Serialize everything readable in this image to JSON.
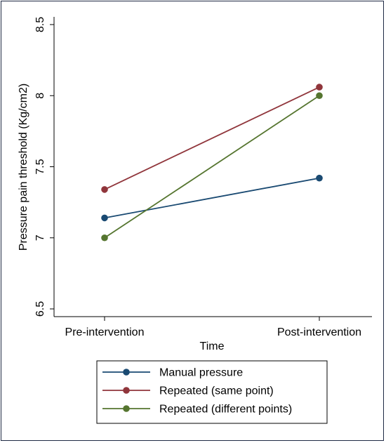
{
  "chart_data": {
    "type": "line",
    "xlabel": "Time",
    "ylabel": "Pressure pain threshold (Kg/cm2)",
    "categories": [
      "Pre-intervention",
      "Post-intervention"
    ],
    "yticks": [
      "6.5",
      "7",
      "7.5",
      "8",
      "8.5"
    ],
    "ylim": [
      6.5,
      8.5
    ],
    "grid": false,
    "legend_position": "bottom",
    "series": [
      {
        "name": "Manual pressure",
        "values": [
          7.14,
          7.42
        ],
        "color": "#1a4a72"
      },
      {
        "name": "Repeated (same point)",
        "values": [
          7.34,
          8.06
        ],
        "color": "#90353b"
      },
      {
        "name": "Repeated (different points)",
        "values": [
          7.0,
          8.0
        ],
        "color": "#55752f"
      }
    ]
  }
}
